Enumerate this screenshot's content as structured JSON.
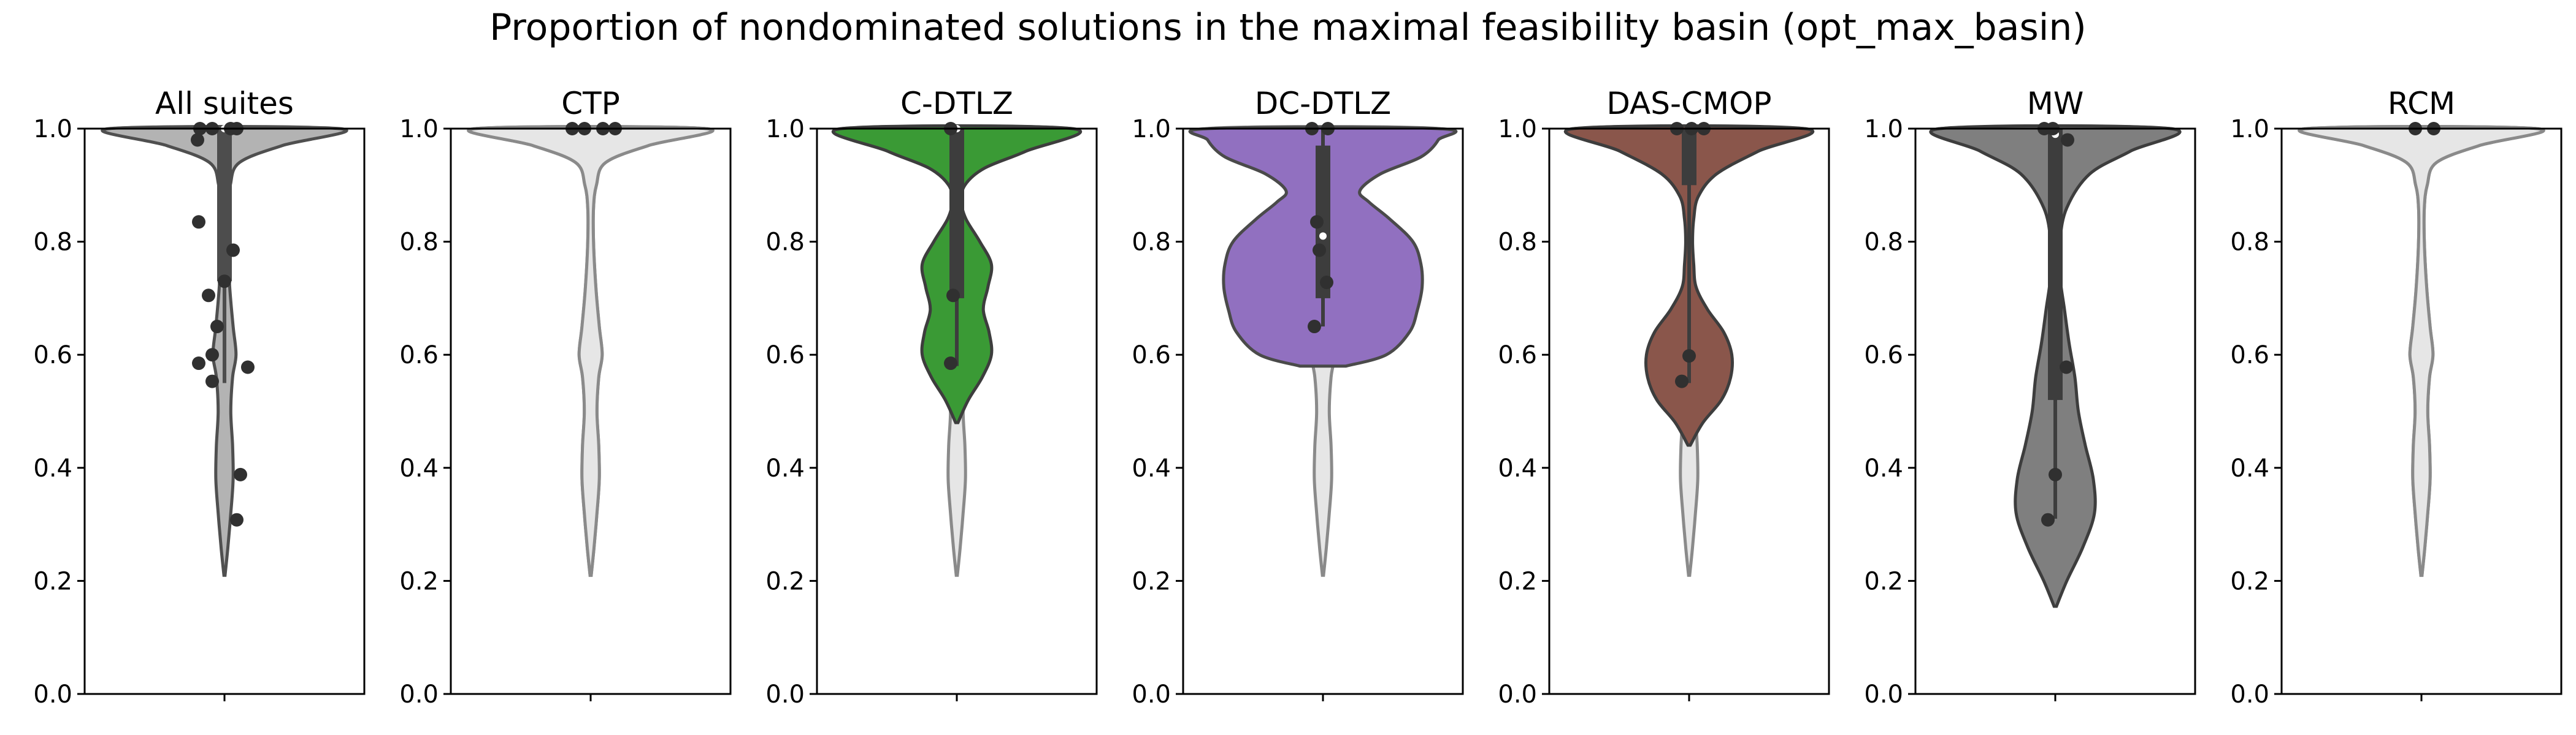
{
  "figure": {
    "title": "Proportion of nondominated solutions in the maximal feasibility basin (opt_max_basin)"
  },
  "chart_data": [
    {
      "type": "violin",
      "title": "All suites",
      "ylim": [
        0,
        1
      ],
      "yticks": [
        "0.0",
        "0.2",
        "0.4",
        "0.6",
        "0.8",
        "1.0"
      ],
      "grid": false,
      "colors": {
        "violin": "#b3b3b3",
        "violin_edge": "#4f4f4f",
        "box": "#4d4d4d"
      },
      "violin": {
        "min": 0.21,
        "max": 1.0,
        "profile": [
          [
            0.21,
            0.005
          ],
          [
            0.26,
            0.03
          ],
          [
            0.32,
            0.055
          ],
          [
            0.38,
            0.075
          ],
          [
            0.44,
            0.07
          ],
          [
            0.5,
            0.055
          ],
          [
            0.56,
            0.07
          ],
          [
            0.6,
            0.1
          ],
          [
            0.65,
            0.075
          ],
          [
            0.72,
            0.045
          ],
          [
            0.8,
            0.025
          ],
          [
            0.86,
            0.025
          ],
          [
            0.9,
            0.05
          ],
          [
            0.94,
            0.13
          ],
          [
            0.97,
            0.5
          ],
          [
            1.0,
            1.0
          ]
        ]
      },
      "box": {
        "q1": 0.73,
        "median": 1.0,
        "q3": 1.0,
        "whisker_low": 0.55,
        "whisker_high": 1.0
      },
      "points": [
        [
          0.05,
          1.0
        ],
        [
          -0.1,
          1.0
        ],
        [
          0.1,
          1.0
        ],
        [
          -0.2,
          1.0
        ],
        [
          -0.22,
          0.98
        ],
        [
          -0.21,
          0.835
        ],
        [
          0.07,
          0.785
        ],
        [
          0.0,
          0.73
        ],
        [
          -0.13,
          0.705
        ],
        [
          -0.06,
          0.65
        ],
        [
          -0.1,
          0.6
        ],
        [
          0.19,
          0.578
        ],
        [
          -0.21,
          0.585
        ],
        [
          -0.1,
          0.553
        ],
        [
          0.13,
          0.388
        ],
        [
          0.1,
          0.308
        ]
      ]
    },
    {
      "type": "violin",
      "title": "CTP",
      "ylim": [
        0,
        1
      ],
      "yticks": [
        "0.0",
        "0.2",
        "0.4",
        "0.6",
        "0.8",
        "1.0"
      ],
      "grid": false,
      "colors": {
        "violin": "#e6e6e6",
        "violin_edge": "#8a8a8a",
        "box": "#4d4d4d"
      },
      "violin": {
        "min": 0.21,
        "max": 1.0,
        "profile": [
          [
            0.21,
            0.005
          ],
          [
            0.26,
            0.03
          ],
          [
            0.32,
            0.055
          ],
          [
            0.38,
            0.075
          ],
          [
            0.44,
            0.07
          ],
          [
            0.5,
            0.055
          ],
          [
            0.56,
            0.07
          ],
          [
            0.6,
            0.1
          ],
          [
            0.65,
            0.075
          ],
          [
            0.72,
            0.045
          ],
          [
            0.8,
            0.025
          ],
          [
            0.86,
            0.025
          ],
          [
            0.9,
            0.05
          ],
          [
            0.94,
            0.13
          ],
          [
            0.97,
            0.5
          ],
          [
            1.0,
            1.0
          ]
        ]
      },
      "box": null,
      "points": [
        [
          -0.15,
          1.0
        ],
        [
          -0.05,
          1.0
        ],
        [
          0.1,
          1.0
        ],
        [
          0.2,
          1.0
        ]
      ]
    },
    {
      "type": "violin",
      "title": "C-DTLZ",
      "ylim": [
        0,
        1
      ],
      "yticks": [
        "0.0",
        "0.2",
        "0.4",
        "0.6",
        "0.8",
        "1.0"
      ],
      "grid": false,
      "colors": {
        "violin": "#3a9a35",
        "violin_edge": "#3d3d3d",
        "box": "#3d3d3d"
      },
      "violin": {
        "min": 0.48,
        "max": 1.0,
        "profile": [
          [
            0.48,
            0.01
          ],
          [
            0.52,
            0.1
          ],
          [
            0.56,
            0.22
          ],
          [
            0.6,
            0.3
          ],
          [
            0.64,
            0.28
          ],
          [
            0.68,
            0.23
          ],
          [
            0.72,
            0.27
          ],
          [
            0.76,
            0.3
          ],
          [
            0.8,
            0.2
          ],
          [
            0.84,
            0.08
          ],
          [
            0.87,
            0.04
          ],
          [
            0.9,
            0.07
          ],
          [
            0.93,
            0.24
          ],
          [
            0.96,
            0.6
          ],
          [
            1.0,
            1.0
          ]
        ]
      },
      "box": {
        "q1": 0.7,
        "median": 1.0,
        "q3": 1.0,
        "whisker_low": 0.58,
        "whisker_high": 1.0
      },
      "points": [
        [
          -0.05,
          1.0
        ],
        [
          -0.03,
          0.705
        ],
        [
          -0.05,
          0.585
        ]
      ]
    },
    {
      "type": "violin",
      "title": "DC-DTLZ",
      "ylim": [
        0,
        1
      ],
      "yticks": [
        "0.0",
        "0.2",
        "0.4",
        "0.6",
        "0.8",
        "1.0"
      ],
      "grid": false,
      "colors": {
        "violin": "#9170c0",
        "violin_edge": "#4a4a4a",
        "box": "#3d3d3d"
      },
      "violin": {
        "min": 0.58,
        "max": 1.0,
        "profile": [
          [
            0.58,
            0.2
          ],
          [
            0.6,
            0.55
          ],
          [
            0.64,
            0.75
          ],
          [
            0.68,
            0.82
          ],
          [
            0.72,
            0.86
          ],
          [
            0.76,
            0.85
          ],
          [
            0.8,
            0.78
          ],
          [
            0.84,
            0.58
          ],
          [
            0.87,
            0.4
          ],
          [
            0.89,
            0.32
          ],
          [
            0.92,
            0.5
          ],
          [
            0.95,
            0.85
          ],
          [
            0.98,
            1.0
          ],
          [
            1.0,
            1.0
          ]
        ]
      },
      "box": {
        "q1": 0.7,
        "median": 0.81,
        "q3": 0.97,
        "whisker_low": 0.65,
        "whisker_high": 1.0
      },
      "points": [
        [
          -0.09,
          1.0
        ],
        [
          0.04,
          1.0
        ],
        [
          -0.05,
          0.835
        ],
        [
          -0.03,
          0.785
        ],
        [
          0.03,
          0.728
        ],
        [
          -0.07,
          0.65
        ]
      ]
    },
    {
      "type": "violin",
      "title": "DAS-CMOP",
      "ylim": [
        0,
        1
      ],
      "yticks": [
        "0.0",
        "0.2",
        "0.4",
        "0.6",
        "0.8",
        "1.0"
      ],
      "grid": false,
      "colors": {
        "violin": "#8a564b",
        "violin_edge": "#3d3d3d",
        "box": "#3d3d3d"
      },
      "violin": {
        "min": 0.44,
        "max": 1.0,
        "profile": [
          [
            0.44,
            0.01
          ],
          [
            0.48,
            0.12
          ],
          [
            0.52,
            0.28
          ],
          [
            0.56,
            0.36
          ],
          [
            0.6,
            0.37
          ],
          [
            0.64,
            0.3
          ],
          [
            0.68,
            0.16
          ],
          [
            0.72,
            0.06
          ],
          [
            0.76,
            0.04
          ],
          [
            0.8,
            0.03
          ],
          [
            0.84,
            0.04
          ],
          [
            0.88,
            0.08
          ],
          [
            0.92,
            0.24
          ],
          [
            0.96,
            0.6
          ],
          [
            1.0,
            1.0
          ]
        ]
      },
      "box": {
        "q1": 0.9,
        "median": 1.0,
        "q3": 1.0,
        "whisker_low": 0.55,
        "whisker_high": 1.0
      },
      "points": [
        [
          -0.1,
          1.0
        ],
        [
          0.02,
          1.0
        ],
        [
          0.12,
          1.0
        ],
        [
          -0.06,
          0.553
        ],
        [
          0.0,
          0.598
        ]
      ]
    },
    {
      "type": "violin",
      "title": "MW",
      "ylim": [
        0,
        1
      ],
      "yticks": [
        "0.0",
        "0.2",
        "0.4",
        "0.6",
        "0.8",
        "1.0"
      ],
      "grid": false,
      "colors": {
        "violin": "#7f7f7f",
        "violin_edge": "#3d3d3d",
        "box": "#3d3d3d"
      },
      "violin": {
        "min": 0.155,
        "max": 1.0,
        "profile": [
          [
            0.155,
            0.01
          ],
          [
            0.2,
            0.1
          ],
          [
            0.26,
            0.24
          ],
          [
            0.32,
            0.34
          ],
          [
            0.38,
            0.33
          ],
          [
            0.44,
            0.26
          ],
          [
            0.5,
            0.2
          ],
          [
            0.56,
            0.17
          ],
          [
            0.62,
            0.12
          ],
          [
            0.68,
            0.08
          ],
          [
            0.74,
            0.04
          ],
          [
            0.8,
            0.04
          ],
          [
            0.86,
            0.1
          ],
          [
            0.92,
            0.3
          ],
          [
            0.96,
            0.65
          ],
          [
            1.0,
            1.0
          ]
        ]
      },
      "box": {
        "q1": 0.52,
        "median": 0.99,
        "q3": 1.0,
        "whisker_low": 0.31,
        "whisker_high": 1.0
      },
      "points": [
        [
          -0.09,
          1.0
        ],
        [
          -0.02,
          1.0
        ],
        [
          0.1,
          0.98
        ],
        [
          0.09,
          0.578
        ],
        [
          0.0,
          0.388
        ],
        [
          -0.06,
          0.308
        ]
      ]
    },
    {
      "type": "violin",
      "title": "RCM",
      "ylim": [
        0,
        1
      ],
      "yticks": [
        "0.0",
        "0.2",
        "0.4",
        "0.6",
        "0.8",
        "1.0"
      ],
      "grid": false,
      "colors": {
        "violin": "#e6e6e6",
        "violin_edge": "#8a8a8a",
        "box": "#4d4d4d"
      },
      "violin": {
        "min": 0.21,
        "max": 1.0,
        "profile": [
          [
            0.21,
            0.005
          ],
          [
            0.26,
            0.03
          ],
          [
            0.32,
            0.055
          ],
          [
            0.38,
            0.075
          ],
          [
            0.44,
            0.07
          ],
          [
            0.5,
            0.055
          ],
          [
            0.56,
            0.07
          ],
          [
            0.6,
            0.1
          ],
          [
            0.65,
            0.075
          ],
          [
            0.72,
            0.045
          ],
          [
            0.8,
            0.025
          ],
          [
            0.86,
            0.025
          ],
          [
            0.9,
            0.05
          ],
          [
            0.94,
            0.13
          ],
          [
            0.97,
            0.5
          ],
          [
            1.0,
            1.0
          ]
        ]
      },
      "box": null,
      "points": [
        [
          -0.05,
          1.0
        ],
        [
          0.1,
          1.0
        ]
      ]
    }
  ]
}
